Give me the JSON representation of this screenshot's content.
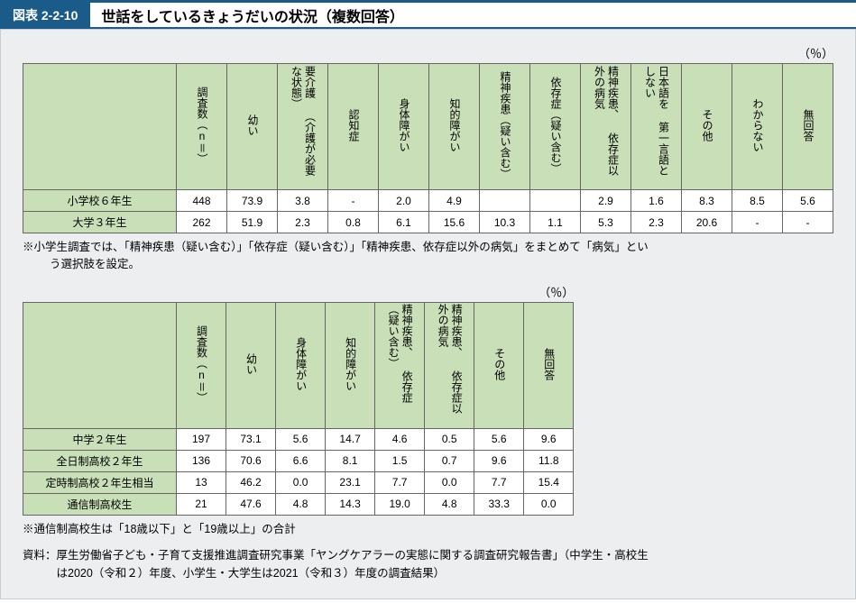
{
  "header": {
    "tag": "図表 2-2-10",
    "title": "世話をしているきょうだいの状況（複数回答）"
  },
  "unit_label": "（％）",
  "table1": {
    "columns": [
      "調査数（n＝）",
      "幼い",
      "要介護\n（介護が必要な状態）",
      "認知症",
      "身体障がい",
      "知的障がい",
      "精神疾患（疑い含む）",
      "依存症（疑い含む）",
      "精神疾患、\n依存症以外の病気",
      "日本語を\n第一言語としない",
      "その他",
      "わからない",
      "無回答"
    ],
    "rows": [
      {
        "label": "小学校６年生",
        "cells": [
          "448",
          "73.9",
          "3.8",
          "-",
          "2.0",
          "4.9",
          "",
          "",
          "2.9",
          "1.6",
          "8.3",
          "8.5",
          "5.6"
        ]
      },
      {
        "label": "大学３年生",
        "cells": [
          "262",
          "51.9",
          "2.3",
          "0.8",
          "6.1",
          "15.6",
          "10.3",
          "1.1",
          "5.3",
          "2.3",
          "20.6",
          "-",
          "-"
        ]
      }
    ]
  },
  "note1_line1": "※小学生調査では、「精神疾患（疑い含む）」「依存症（疑い含む）」「精神疾患、依存症以外の病気」をまとめて「病気」とい",
  "note1_line2": "う選択肢を設定。",
  "table2": {
    "columns": [
      "調査数（n＝）",
      "幼い",
      "身体障がい",
      "知的障がい",
      "精神疾患、\n依存症（疑い含む）",
      "精神疾患、\n依存症以外の病気",
      "その他",
      "無回答"
    ],
    "rows": [
      {
        "label": "中学２年生",
        "cells": [
          "197",
          "73.1",
          "5.6",
          "14.7",
          "4.6",
          "0.5",
          "5.6",
          "9.6"
        ]
      },
      {
        "label": "全日制高校２年生",
        "cells": [
          "136",
          "70.6",
          "6.6",
          "8.1",
          "1.5",
          "0.7",
          "9.6",
          "11.8"
        ]
      },
      {
        "label": "定時制高校２年生相当",
        "cells": [
          "13",
          "46.2",
          "0.0",
          "23.1",
          "7.7",
          "0.0",
          "7.7",
          "15.4"
        ]
      },
      {
        "label": "通信制高校生",
        "cells": [
          "21",
          "47.6",
          "4.8",
          "14.3",
          "19.0",
          "4.8",
          "33.3",
          "0.0"
        ]
      }
    ]
  },
  "note2": "※通信制高校生は「18歳以下」と「19歳以上」の合計",
  "source_line1": "資料：厚生労働省子ども・子育て支援推進調査研究事業「ヤングケアラーの実態に関する調査研究報告書」（中学生・高校生",
  "source_line2": "は2020（令和２）年度、小学生・大学生は2021（令和３）年度の調査結果）"
}
